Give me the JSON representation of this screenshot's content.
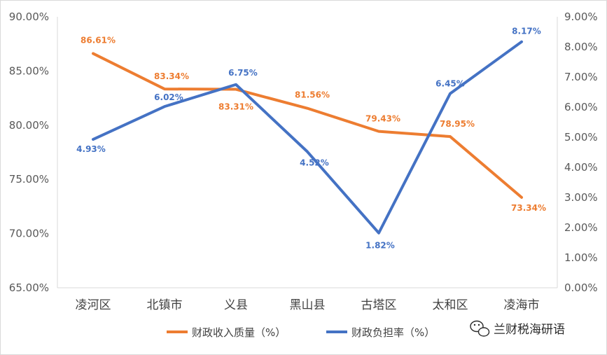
{
  "chart_data": {
    "type": "line",
    "categories": [
      "凌河区",
      "北镇市",
      "义县",
      "黑山县",
      "古塔区",
      "太和区",
      "凌海市"
    ],
    "series": [
      {
        "name": "财政收入质量（%）",
        "axis": "left",
        "color": "#ED7D31",
        "values": [
          86.61,
          83.34,
          83.31,
          81.56,
          79.43,
          78.95,
          73.34
        ],
        "labels": [
          "86.61%",
          "83.34%",
          "83.31%",
          "81.56%",
          "79.43%",
          "78.95%",
          "73.34%"
        ]
      },
      {
        "name": "财政负担率（%）",
        "axis": "right",
        "color": "#4472C4",
        "values": [
          4.93,
          6.02,
          6.75,
          4.52,
          1.82,
          6.45,
          8.17
        ],
        "labels": [
          "4.93%",
          "6.02%",
          "6.75%",
          "4.52%",
          "1.82%",
          "6.45%",
          "8.17%"
        ]
      }
    ],
    "y_left": {
      "range": [
        65,
        90
      ],
      "ticks": [
        65,
        70,
        75,
        80,
        85,
        90
      ],
      "tick_labels": [
        "65.00%",
        "70.00%",
        "75.00%",
        "80.00%",
        "85.00%",
        "90.00%"
      ]
    },
    "y_right": {
      "range": [
        0,
        9
      ],
      "ticks": [
        0,
        1,
        2,
        3,
        4,
        5,
        6,
        7,
        8,
        9
      ],
      "tick_labels": [
        "0.00%",
        "1.00%",
        "2.00%",
        "3.00%",
        "4.00%",
        "5.00%",
        "6.00%",
        "7.00%",
        "8.00%",
        "9.00%"
      ]
    },
    "grid": false,
    "legend": "bottom"
  },
  "watermark": {
    "text": "兰财税海研语",
    "icon": "wechat-icon"
  }
}
